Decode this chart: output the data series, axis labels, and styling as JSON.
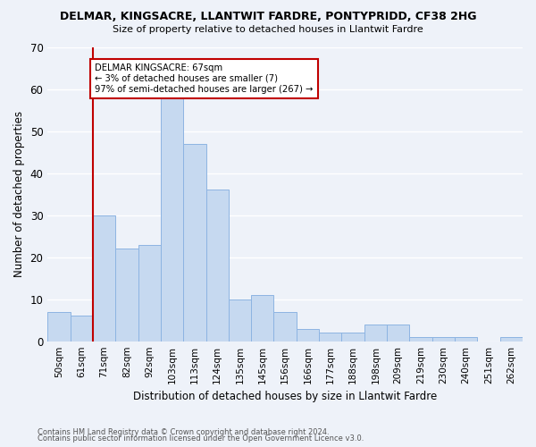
{
  "title": "DELMAR, KINGSACRE, LLANTWIT FARDRE, PONTYPRIDD, CF38 2HG",
  "subtitle": "Size of property relative to detached houses in Llantwit Fardre",
  "xlabel": "Distribution of detached houses by size in Llantwit Fardre",
  "ylabel": "Number of detached properties",
  "categories": [
    "50sqm",
    "61sqm",
    "71sqm",
    "82sqm",
    "92sqm",
    "103sqm",
    "113sqm",
    "124sqm",
    "135sqm",
    "145sqm",
    "156sqm",
    "166sqm",
    "177sqm",
    "188sqm",
    "198sqm",
    "209sqm",
    "219sqm",
    "230sqm",
    "240sqm",
    "251sqm",
    "262sqm"
  ],
  "values": [
    7,
    6,
    30,
    22,
    23,
    58,
    47,
    36,
    10,
    11,
    7,
    3,
    2,
    2,
    4,
    4,
    1,
    1,
    1,
    0,
    1
  ],
  "bar_color": "#c6d9f0",
  "bar_edge_color": "#8db4e2",
  "marker_label": "DELMAR KINGSACRE: 67sqm",
  "marker_line_color": "#c00000",
  "annotation_line1": "← 3% of detached houses are smaller (7)",
  "annotation_line2": "97% of semi-detached houses are larger (267) →",
  "ylim": [
    0,
    70
  ],
  "yticks": [
    0,
    10,
    20,
    30,
    40,
    50,
    60,
    70
  ],
  "footer1": "Contains HM Land Registry data © Crown copyright and database right 2024.",
  "footer2": "Contains public sector information licensed under the Open Government Licence v3.0.",
  "bg_color": "#eef2f9",
  "grid_color": "#ffffff"
}
